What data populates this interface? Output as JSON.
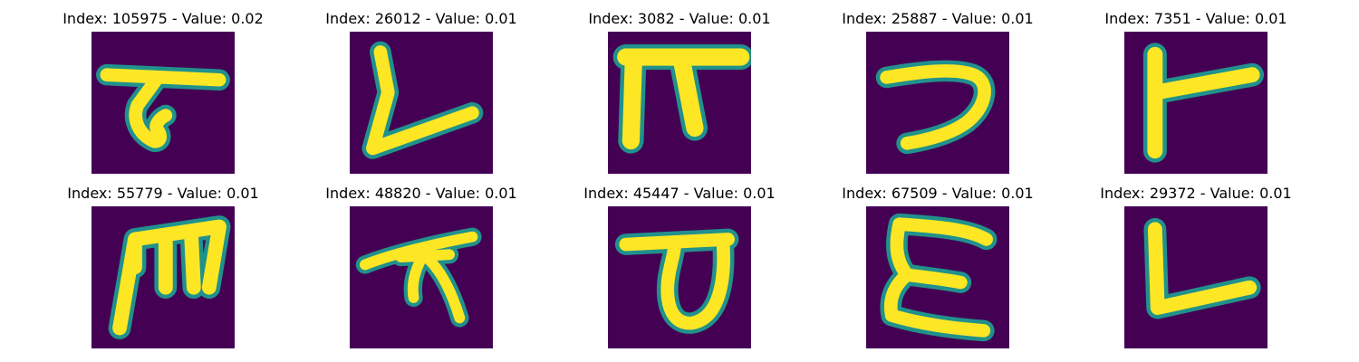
{
  "colors": {
    "background": "#440154",
    "stroke_core": "#fde725",
    "stroke_edge": "#2db27d",
    "stroke_halo": "#21918c"
  },
  "panels": [
    {
      "title": "Index: 105975 - Value: 0.02"
    },
    {
      "title": "Index: 26012 - Value: 0.01"
    },
    {
      "title": "Index: 3082 - Value: 0.01"
    },
    {
      "title": "Index: 25887 - Value: 0.01"
    },
    {
      "title": "Index: 7351 - Value: 0.01"
    },
    {
      "title": "Index: 55779 - Value: 0.01"
    },
    {
      "title": "Index: 48820 - Value: 0.01"
    },
    {
      "title": "Index: 45447 - Value: 0.01"
    },
    {
      "title": "Index: 67509 - Value: 0.01"
    },
    {
      "title": "Index: 29372 - Value: 0.01"
    }
  ]
}
